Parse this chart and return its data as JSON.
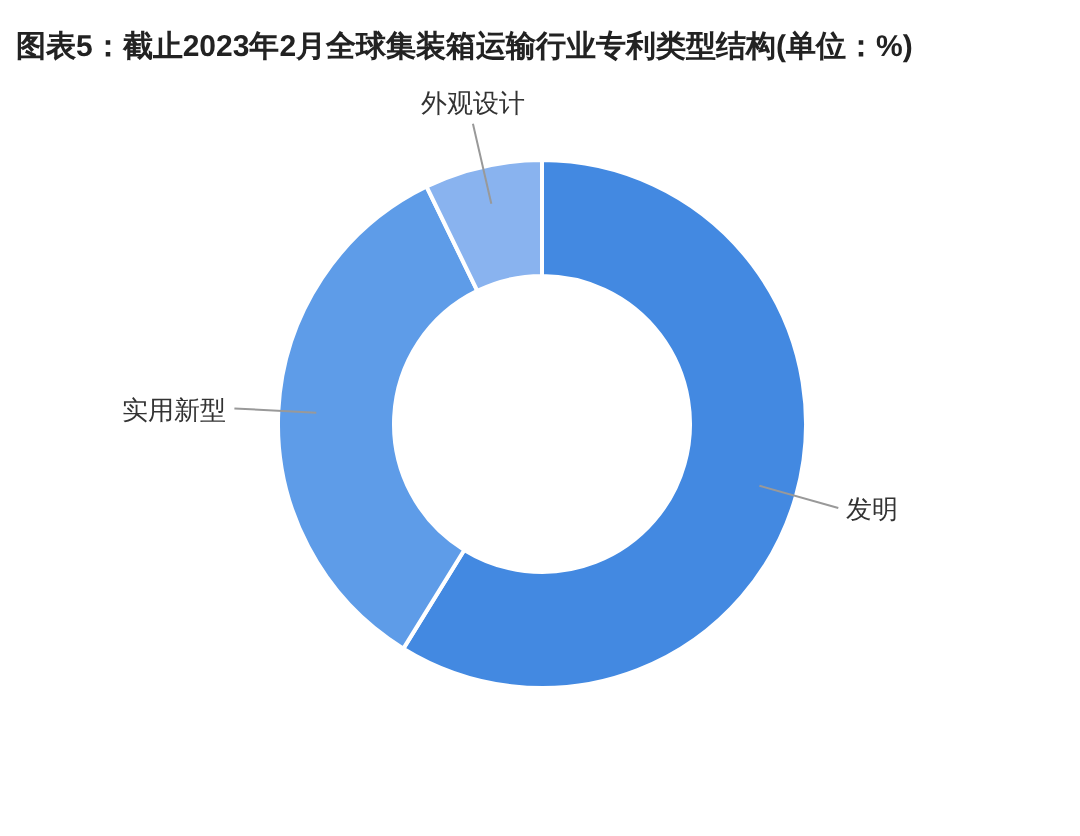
{
  "chart_data": {
    "type": "donut",
    "title": "图表5：截止2023年2月全球集装箱运输行业专利类型结构(单位：%)",
    "categories": [
      "发明",
      "实用新型",
      "外观设计"
    ],
    "values": [
      58.8,
      34.0,
      7.2
    ],
    "colors": [
      "#4389e1",
      "#5e9ce8",
      "#89b3ef"
    ]
  }
}
